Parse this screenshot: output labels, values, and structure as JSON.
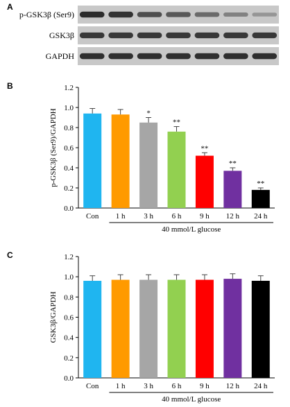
{
  "panel_a": {
    "letter": "A",
    "blots": [
      {
        "label": "p-GSK3β (Ser9)",
        "intensities": [
          0.92,
          0.88,
          0.72,
          0.66,
          0.55,
          0.42,
          0.3
        ]
      },
      {
        "label": "GSK3β",
        "intensities": [
          0.85,
          0.85,
          0.85,
          0.85,
          0.85,
          0.85,
          0.85
        ]
      },
      {
        "label": "GAPDH",
        "intensities": [
          0.9,
          0.9,
          0.9,
          0.9,
          0.9,
          0.9,
          0.9
        ]
      }
    ]
  },
  "chart_data": [
    {
      "panel": "B",
      "type": "bar",
      "ylabel": "p-GSK3β (Ser9)/GAPDH",
      "xgroup_label": "40 mmol/L glucose",
      "categories": [
        "Con",
        "1 h",
        "3 h",
        "6 h",
        "9 h",
        "12 h",
        "24 h"
      ],
      "values": [
        0.94,
        0.93,
        0.85,
        0.76,
        0.52,
        0.37,
        0.18
      ],
      "errors": [
        0.05,
        0.05,
        0.05,
        0.05,
        0.03,
        0.03,
        0.02
      ],
      "significance": [
        "",
        "",
        "*",
        "**",
        "**",
        "**",
        "**"
      ],
      "colors": [
        "#1fb5f0",
        "#ff9a00",
        "#a6a6a6",
        "#92d050",
        "#ff0000",
        "#7030a0",
        "#000000"
      ],
      "ylim": [
        0,
        1.2
      ],
      "yticks": [
        "0.0",
        "0.2",
        "0.4",
        "0.6",
        "0.8",
        "1.0",
        "1.2"
      ],
      "grid": false
    },
    {
      "panel": "C",
      "type": "bar",
      "ylabel": "GSK3β/GAPDH",
      "xgroup_label": "40 mmol/L glucose",
      "categories": [
        "Con",
        "1 h",
        "3 h",
        "6 h",
        "9 h",
        "12 h",
        "24 h"
      ],
      "values": [
        0.96,
        0.97,
        0.97,
        0.97,
        0.97,
        0.98,
        0.96
      ],
      "errors": [
        0.05,
        0.05,
        0.05,
        0.05,
        0.05,
        0.05,
        0.05
      ],
      "significance": [
        "",
        "",
        "",
        "",
        "",
        "",
        ""
      ],
      "colors": [
        "#1fb5f0",
        "#ff9a00",
        "#a6a6a6",
        "#92d050",
        "#ff0000",
        "#7030a0",
        "#000000"
      ],
      "ylim": [
        0,
        1.2
      ],
      "yticks": [
        "0.0",
        "0.2",
        "0.4",
        "0.6",
        "0.8",
        "1.0",
        "1.2"
      ],
      "grid": false
    }
  ]
}
